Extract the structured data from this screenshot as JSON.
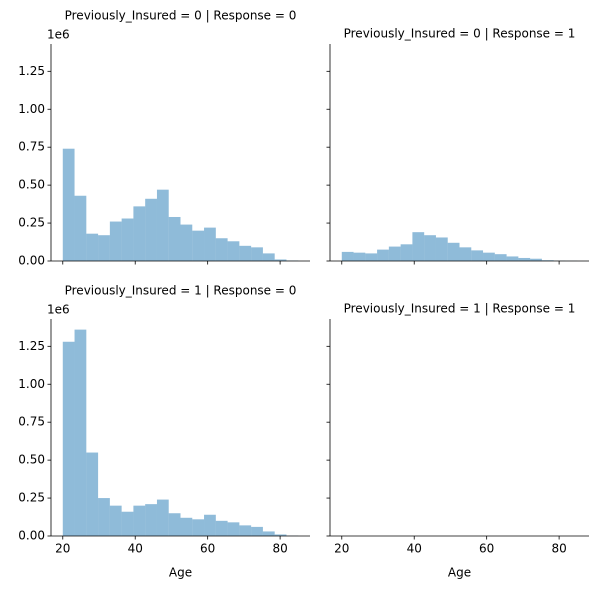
{
  "chart_data": [
    {
      "type": "histogram",
      "title": "Previously_Insured = 0 | Response = 0",
      "y_offset_label": "1e6",
      "color": "#1f77b4",
      "alpha": 0.5,
      "bins": [
        20,
        23.25,
        26.5,
        29.75,
        33,
        36.25,
        39.5,
        42.75,
        46,
        49.25,
        52.5,
        55.75,
        59,
        62.25,
        65.5,
        68.75,
        72,
        75.25,
        78.5,
        81.75,
        85
      ],
      "values": [
        0.74,
        0.43,
        0.18,
        0.17,
        0.26,
        0.28,
        0.36,
        0.41,
        0.47,
        0.29,
        0.24,
        0.2,
        0.22,
        0.15,
        0.13,
        0.1,
        0.09,
        0.05,
        0.01,
        0.003
      ],
      "xlim": [
        16.75,
        88.25
      ],
      "ylim": [
        0,
        1.43
      ],
      "yticks": [
        {
          "value": 0,
          "label": "0.00"
        },
        0.25,
        {
          "value": 0.5,
          "label": "0.50"
        },
        0.75,
        {
          "value": 1,
          "label": "1.00"
        },
        1.25
      ]
    },
    {
      "type": "histogram",
      "title": "Previously_Insured = 0 | Response = 1",
      "color": "#1f77b4",
      "alpha": 0.5,
      "bins": [
        20,
        23.25,
        26.5,
        29.75,
        33,
        36.25,
        39.5,
        42.75,
        46,
        49.25,
        52.5,
        55.75,
        59,
        62.25,
        65.5,
        68.75,
        72,
        75.25,
        78.5,
        81.75,
        85
      ],
      "values": [
        0.06,
        0.055,
        0.05,
        0.075,
        0.095,
        0.11,
        0.19,
        0.17,
        0.155,
        0.12,
        0.09,
        0.07,
        0.055,
        0.045,
        0.03,
        0.02,
        0.015,
        0.005,
        0.002,
        0.001
      ],
      "xlim": [
        16.75,
        88.25
      ],
      "ylim": [
        0,
        1.43
      ]
    },
    {
      "type": "histogram",
      "title": "Previously_Insured = 1 | Response = 0",
      "y_offset_label": "1e6",
      "xlabel": "Age",
      "color": "#1f77b4",
      "alpha": 0.5,
      "bins": [
        20,
        23.25,
        26.5,
        29.75,
        33,
        36.25,
        39.5,
        42.75,
        46,
        49.25,
        52.5,
        55.75,
        59,
        62.25,
        65.5,
        68.75,
        72,
        75.25,
        78.5,
        81.75,
        85
      ],
      "values": [
        1.28,
        1.36,
        0.55,
        0.25,
        0.2,
        0.16,
        0.2,
        0.21,
        0.24,
        0.15,
        0.12,
        0.11,
        0.14,
        0.1,
        0.09,
        0.07,
        0.06,
        0.03,
        0.01,
        0.002
      ],
      "xlim": [
        16.75,
        88.25
      ],
      "ylim": [
        0,
        1.43
      ],
      "xticks": [
        20,
        40,
        60,
        80
      ],
      "yticks": [
        {
          "value": 0,
          "label": "0.00"
        },
        0.25,
        {
          "value": 0.5,
          "label": "0.50"
        },
        0.75,
        {
          "value": 1,
          "label": "1.00"
        },
        1.25
      ]
    },
    {
      "type": "histogram",
      "title": "Previously_Insured = 1 | Response = 1",
      "xlabel": "Age",
      "xlim": [
        16.75,
        88.25
      ],
      "ylim": [
        0,
        1.43
      ],
      "xticks": [
        20,
        40,
        60,
        80
      ]
    }
  ]
}
